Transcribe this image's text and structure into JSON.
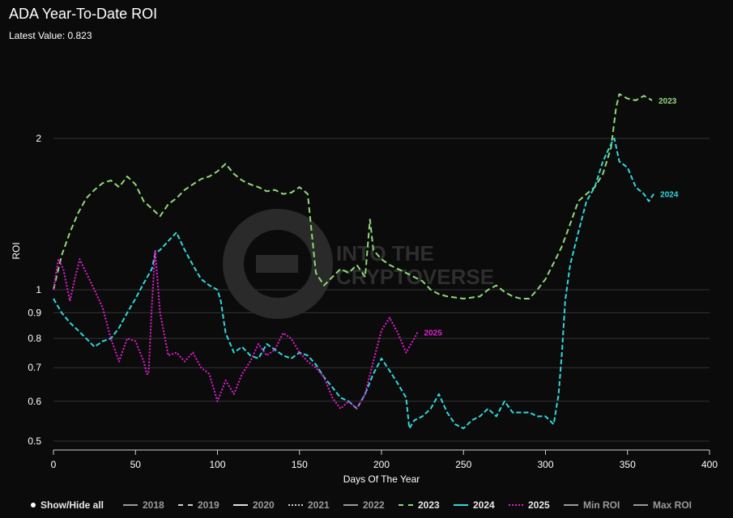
{
  "title": "ADA Year-To-Date ROI",
  "subtitle": "Latest Value: 0.823",
  "watermark": "INTO THE CRYPTOVERSE",
  "legend": {
    "show_hide_all": "Show/Hide all",
    "items": [
      {
        "label": "2018",
        "style": "solid",
        "color": "#9a9a9a",
        "active": false
      },
      {
        "label": "2019",
        "style": "dashed",
        "color": "#cfcfcf",
        "active": false
      },
      {
        "label": "2020",
        "style": "solid",
        "color": "#e0e0e0",
        "active": false
      },
      {
        "label": "2021",
        "style": "dotted",
        "color": "#cfcfcf",
        "active": false
      },
      {
        "label": "2022",
        "style": "solid",
        "color": "#9a9a9a",
        "active": false
      },
      {
        "label": "2023",
        "style": "dashed",
        "color": "#90d97a",
        "active": true
      },
      {
        "label": "2024",
        "style": "solid",
        "color": "#2fd8dc",
        "active": true
      },
      {
        "label": "2025",
        "style": "dotted",
        "color": "#e51ed2",
        "active": true
      },
      {
        "label": "Min ROI",
        "style": "solid",
        "color": "#9a9a9a",
        "active": false
      },
      {
        "label": "Max ROI",
        "style": "solid",
        "color": "#9a9a9a",
        "active": false
      }
    ]
  },
  "chart_data": {
    "type": "line",
    "title": "ADA Year-To-Date ROI",
    "xlabel": "Days Of The Year",
    "ylabel": "ROI",
    "xlim": [
      0,
      400
    ],
    "ylim": [
      0.48,
      2.7
    ],
    "yscale": "log",
    "xticks": [
      0,
      50,
      100,
      150,
      200,
      250,
      300,
      350,
      400
    ],
    "yticks": [
      0.5,
      0.6,
      0.7,
      0.8,
      0.9,
      1,
      2
    ],
    "ytick_labels": [
      "0.5",
      "0.6",
      "0.7",
      "0.8",
      "0.9",
      "1",
      "2"
    ],
    "grid": true,
    "legend_position": "bottom",
    "series": [
      {
        "name": "2023",
        "color": "#90d97a",
        "dash": "7,4",
        "end_label": "2023",
        "x": [
          0,
          5,
          10,
          15,
          20,
          25,
          30,
          35,
          40,
          45,
          50,
          55,
          60,
          65,
          70,
          75,
          80,
          85,
          90,
          95,
          100,
          105,
          110,
          115,
          120,
          125,
          130,
          135,
          140,
          145,
          150,
          155,
          160,
          165,
          170,
          175,
          180,
          185,
          190,
          193,
          195,
          200,
          205,
          210,
          215,
          220,
          225,
          230,
          235,
          240,
          250,
          260,
          265,
          270,
          275,
          280,
          285,
          290,
          295,
          300,
          305,
          310,
          315,
          320,
          325,
          330,
          335,
          340,
          343,
          345,
          350,
          355,
          360,
          365
        ],
        "y": [
          1.0,
          1.17,
          1.3,
          1.42,
          1.52,
          1.58,
          1.63,
          1.65,
          1.6,
          1.68,
          1.62,
          1.5,
          1.45,
          1.4,
          1.48,
          1.52,
          1.58,
          1.62,
          1.66,
          1.68,
          1.72,
          1.78,
          1.7,
          1.65,
          1.62,
          1.6,
          1.57,
          1.58,
          1.55,
          1.56,
          1.6,
          1.55,
          1.08,
          1.02,
          1.06,
          1.1,
          1.08,
          1.12,
          1.06,
          1.38,
          1.2,
          1.15,
          1.12,
          1.1,
          1.08,
          1.06,
          1.04,
          1.0,
          0.98,
          0.97,
          0.96,
          0.97,
          1.0,
          1.02,
          0.99,
          0.97,
          0.96,
          0.96,
          1.0,
          1.05,
          1.13,
          1.22,
          1.35,
          1.5,
          1.55,
          1.6,
          1.7,
          1.92,
          2.3,
          2.45,
          2.4,
          2.38,
          2.43,
          2.38
        ]
      },
      {
        "name": "2024",
        "color": "#2fd8dc",
        "dash": "6,3",
        "end_label": "2024",
        "x": [
          0,
          5,
          10,
          15,
          20,
          25,
          30,
          35,
          40,
          45,
          50,
          55,
          60,
          62,
          65,
          70,
          75,
          80,
          85,
          90,
          95,
          100,
          102,
          105,
          110,
          115,
          120,
          125,
          130,
          135,
          140,
          145,
          150,
          155,
          160,
          165,
          170,
          175,
          180,
          185,
          190,
          195,
          200,
          205,
          210,
          215,
          217,
          220,
          225,
          230,
          235,
          240,
          245,
          250,
          255,
          260,
          265,
          270,
          275,
          280,
          285,
          290,
          295,
          300,
          305,
          308,
          310,
          312,
          315,
          320,
          325,
          330,
          335,
          340,
          342,
          345,
          350,
          355,
          360,
          363,
          366
        ],
        "y": [
          0.96,
          0.9,
          0.86,
          0.83,
          0.8,
          0.77,
          0.79,
          0.8,
          0.84,
          0.9,
          0.96,
          1.03,
          1.1,
          1.18,
          1.2,
          1.25,
          1.3,
          1.2,
          1.12,
          1.05,
          1.02,
          1.0,
          0.95,
          0.82,
          0.75,
          0.77,
          0.74,
          0.73,
          0.78,
          0.76,
          0.74,
          0.73,
          0.75,
          0.74,
          0.71,
          0.67,
          0.64,
          0.61,
          0.6,
          0.58,
          0.62,
          0.68,
          0.73,
          0.69,
          0.65,
          0.61,
          0.53,
          0.55,
          0.56,
          0.58,
          0.62,
          0.57,
          0.54,
          0.53,
          0.55,
          0.56,
          0.58,
          0.56,
          0.6,
          0.57,
          0.57,
          0.57,
          0.56,
          0.56,
          0.54,
          0.62,
          0.75,
          0.95,
          1.12,
          1.3,
          1.5,
          1.6,
          1.8,
          1.95,
          2.0,
          1.8,
          1.75,
          1.6,
          1.55,
          1.5,
          1.55
        ]
      },
      {
        "name": "2025",
        "color": "#e51ed2",
        "dash": "2,2",
        "end_label": "2025",
        "x": [
          0,
          3,
          6,
          10,
          13,
          16,
          20,
          25,
          30,
          35,
          40,
          45,
          50,
          55,
          57,
          58,
          60,
          62,
          65,
          70,
          75,
          80,
          85,
          90,
          95,
          100,
          105,
          110,
          115,
          120,
          125,
          130,
          135,
          140,
          145,
          150,
          155,
          160,
          165,
          170,
          175,
          180,
          185,
          190,
          195,
          200,
          205,
          210,
          215,
          220,
          222
        ],
        "y": [
          1.0,
          1.15,
          1.1,
          0.95,
          1.05,
          1.15,
          1.08,
          1.0,
          0.92,
          0.8,
          0.72,
          0.8,
          0.79,
          0.72,
          0.68,
          0.68,
          0.93,
          1.2,
          0.9,
          0.74,
          0.75,
          0.72,
          0.75,
          0.7,
          0.68,
          0.6,
          0.66,
          0.62,
          0.68,
          0.72,
          0.78,
          0.74,
          0.76,
          0.82,
          0.8,
          0.75,
          0.72,
          0.7,
          0.67,
          0.61,
          0.58,
          0.6,
          0.58,
          0.62,
          0.72,
          0.83,
          0.88,
          0.82,
          0.75,
          0.8,
          0.823
        ]
      }
    ]
  }
}
